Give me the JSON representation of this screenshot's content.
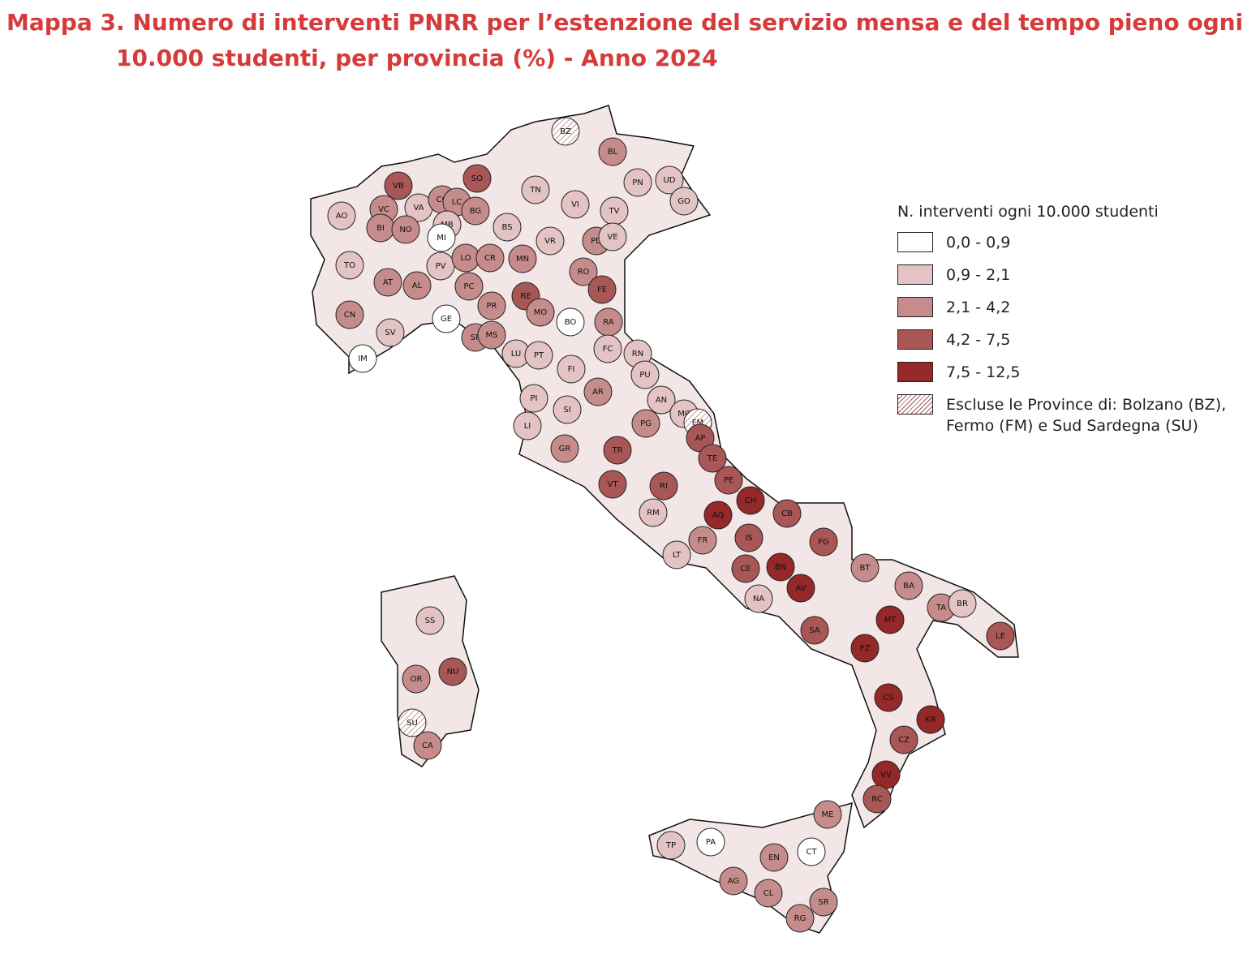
{
  "title": "Mappa 3. Numero di interventi PNRR per l’estenzione del servizio mensa e del tempo pieno ogni 10.000 studenti, per provincia (%)  - Anno 2024",
  "legend": {
    "title": "N. interventi ogni 10.000 studenti",
    "items": [
      {
        "label": "0,0 - 0,9",
        "color": "#ffffff"
      },
      {
        "label": "0,9 - 2,1",
        "color": "#e3c3c3"
      },
      {
        "label": "2,1 - 4,2",
        "color": "#c68b8b"
      },
      {
        "label": "4,2 - 7,5",
        "color": "#a85656"
      },
      {
        "label": "7,5 - 12,5",
        "color": "#952828"
      },
      {
        "label": "Escluse le Province di: Bolzano (BZ), Fermo (FM) e Sud Sardegna (SU)",
        "color": "#ffffff",
        "pattern": "hatched"
      }
    ]
  },
  "provinces": [
    {
      "code": "BZ",
      "class": 5
    },
    {
      "code": "BL",
      "class": 2
    },
    {
      "code": "SO",
      "class": 3
    },
    {
      "code": "VB",
      "class": 3
    },
    {
      "code": "TN",
      "class": 1
    },
    {
      "code": "PN",
      "class": 1
    },
    {
      "code": "UD",
      "class": 1
    },
    {
      "code": "GO",
      "class": 1
    },
    {
      "code": "AO",
      "class": 1
    },
    {
      "code": "VC",
      "class": 2
    },
    {
      "code": "VA",
      "class": 1
    },
    {
      "code": "CO",
      "class": 2
    },
    {
      "code": "LC",
      "class": 2
    },
    {
      "code": "BG",
      "class": 2
    },
    {
      "code": "VI",
      "class": 1
    },
    {
      "code": "TV",
      "class": 1
    },
    {
      "code": "BI",
      "class": 2
    },
    {
      "code": "NO",
      "class": 2
    },
    {
      "code": "MB",
      "class": 1
    },
    {
      "code": "MI",
      "class": 0
    },
    {
      "code": "BS",
      "class": 1
    },
    {
      "code": "VR",
      "class": 1
    },
    {
      "code": "PD",
      "class": 2
    },
    {
      "code": "VE",
      "class": 1
    },
    {
      "code": "TO",
      "class": 1
    },
    {
      "code": "PV",
      "class": 1
    },
    {
      "code": "LO",
      "class": 2
    },
    {
      "code": "CR",
      "class": 2
    },
    {
      "code": "MN",
      "class": 2
    },
    {
      "code": "RO",
      "class": 2
    },
    {
      "code": "AT",
      "class": 2
    },
    {
      "code": "AL",
      "class": 2
    },
    {
      "code": "PC",
      "class": 2
    },
    {
      "code": "RE",
      "class": 3
    },
    {
      "code": "FE",
      "class": 3
    },
    {
      "code": "PR",
      "class": 2
    },
    {
      "code": "MO",
      "class": 2
    },
    {
      "code": "CN",
      "class": 2
    },
    {
      "code": "GE",
      "class": 0
    },
    {
      "code": "BO",
      "class": 0
    },
    {
      "code": "RA",
      "class": 2
    },
    {
      "code": "SV",
      "class": 1
    },
    {
      "code": "SP",
      "class": 2
    },
    {
      "code": "MS",
      "class": 2
    },
    {
      "code": "LU",
      "class": 1
    },
    {
      "code": "PT",
      "class": 1
    },
    {
      "code": "FC",
      "class": 1
    },
    {
      "code": "RN",
      "class": 1
    },
    {
      "code": "IM",
      "class": 0
    },
    {
      "code": "FI",
      "class": 1
    },
    {
      "code": "PU",
      "class": 1
    },
    {
      "code": "AR",
      "class": 2
    },
    {
      "code": "AN",
      "class": 1
    },
    {
      "code": "PI",
      "class": 1
    },
    {
      "code": "SI",
      "class": 1
    },
    {
      "code": "MC",
      "class": 1
    },
    {
      "code": "FM",
      "class": 5
    },
    {
      "code": "LI",
      "class": 1
    },
    {
      "code": "PG",
      "class": 2
    },
    {
      "code": "AP",
      "class": 3
    },
    {
      "code": "GR",
      "class": 2
    },
    {
      "code": "TR",
      "class": 3
    },
    {
      "code": "TE",
      "class": 3
    },
    {
      "code": "VT",
      "class": 3
    },
    {
      "code": "RI",
      "class": 3
    },
    {
      "code": "PE",
      "class": 3
    },
    {
      "code": "AQ",
      "class": 4
    },
    {
      "code": "CH",
      "class": 4
    },
    {
      "code": "CB",
      "class": 3
    },
    {
      "code": "RM",
      "class": 1
    },
    {
      "code": "IS",
      "class": 3
    },
    {
      "code": "FG",
      "class": 3
    },
    {
      "code": "FR",
      "class": 2
    },
    {
      "code": "LT",
      "class": 1
    },
    {
      "code": "CE",
      "class": 3
    },
    {
      "code": "BN",
      "class": 4
    },
    {
      "code": "BT",
      "class": 2
    },
    {
      "code": "AV",
      "class": 4
    },
    {
      "code": "BA",
      "class": 2
    },
    {
      "code": "NA",
      "class": 1
    },
    {
      "code": "TA",
      "class": 2
    },
    {
      "code": "BR",
      "class": 1
    },
    {
      "code": "MT",
      "class": 4
    },
    {
      "code": "SA",
      "class": 3
    },
    {
      "code": "LE",
      "class": 3
    },
    {
      "code": "PZ",
      "class": 4
    },
    {
      "code": "CS",
      "class": 4
    },
    {
      "code": "KR",
      "class": 4
    },
    {
      "code": "CZ",
      "class": 3
    },
    {
      "code": "VV",
      "class": 4
    },
    {
      "code": "RC",
      "class": 3
    },
    {
      "code": "SS",
      "class": 1
    },
    {
      "code": "NU",
      "class": 3
    },
    {
      "code": "OR",
      "class": 2
    },
    {
      "code": "SU",
      "class": 5
    },
    {
      "code": "CA",
      "class": 2
    },
    {
      "code": "ME",
      "class": 2
    },
    {
      "code": "PA",
      "class": 0
    },
    {
      "code": "TP",
      "class": 1
    },
    {
      "code": "CT",
      "class": 0
    },
    {
      "code": "EN",
      "class": 2
    },
    {
      "code": "AG",
      "class": 2
    },
    {
      "code": "CL",
      "class": 2
    },
    {
      "code": "SR",
      "class": 2
    },
    {
      "code": "RG",
      "class": 2
    }
  ]
}
